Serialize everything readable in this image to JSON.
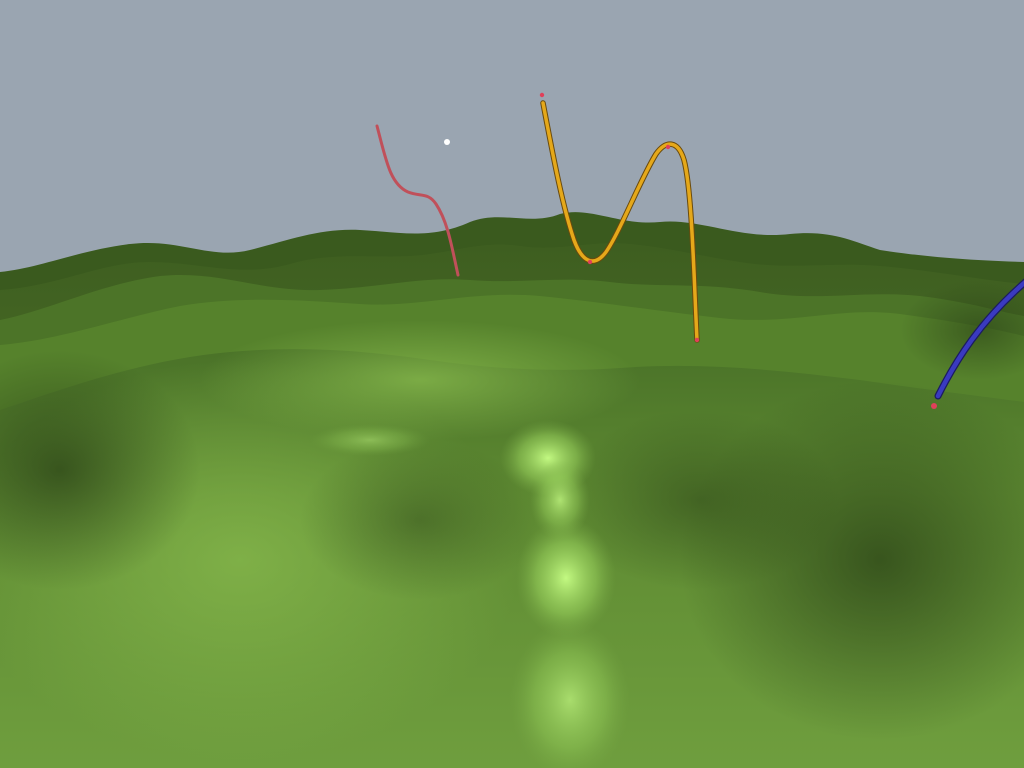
{
  "scene": {
    "title": "",
    "sky_color": "#9aa5b1",
    "terrain_colors": {
      "light": "#7fb04a",
      "mid": "#5e8a32",
      "dark": "#34501c",
      "highlight": "#b6f57a"
    },
    "curves": [
      {
        "name": "red-spline-curve",
        "color": "#c0505a"
      },
      {
        "name": "yellow-spline-curve",
        "color": "#e5a81a"
      },
      {
        "name": "blue-spline-curve",
        "color": "#3a3ac0"
      }
    ],
    "control_point_color": "#e0405a",
    "light_marker_color": "#ffffff"
  }
}
